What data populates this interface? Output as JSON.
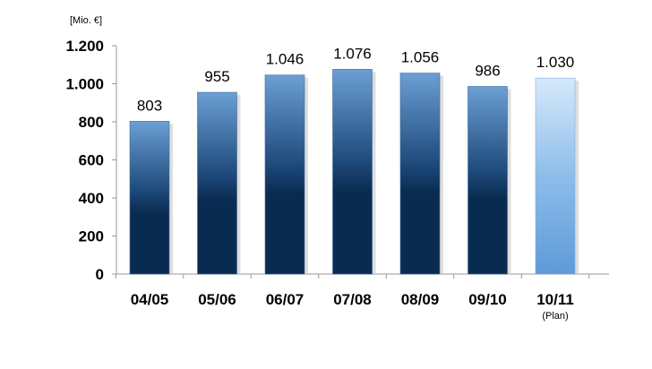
{
  "chart_data": {
    "type": "bar",
    "unit_label": "[Mio. €]",
    "categories": [
      "04/05",
      "05/06",
      "06/07",
      "07/08",
      "08/09",
      "09/10",
      "10/11"
    ],
    "category_sublabels": [
      "",
      "",
      "",
      "",
      "",
      "",
      "(Plan)"
    ],
    "values": [
      803,
      955,
      1046,
      1076,
      1056,
      986,
      1030
    ],
    "value_labels": [
      "803",
      "955",
      "1.046",
      "1.076",
      "1.056",
      "986",
      "1.030"
    ],
    "planned": [
      false,
      false,
      false,
      false,
      false,
      false,
      true
    ],
    "ylim": [
      0,
      1200
    ],
    "yticks": [
      0,
      200,
      400,
      600,
      800,
      1000,
      1200
    ],
    "ytick_labels": [
      "0",
      "200",
      "400",
      "600",
      "800",
      "1.000",
      "1.200"
    ],
    "grid": false,
    "colors": {
      "actual_top": "#6C9FD3",
      "actual_bottom": "#0A2B50",
      "plan_top": "#D6E9FA",
      "plan_bottom": "#5E9AD9"
    }
  }
}
